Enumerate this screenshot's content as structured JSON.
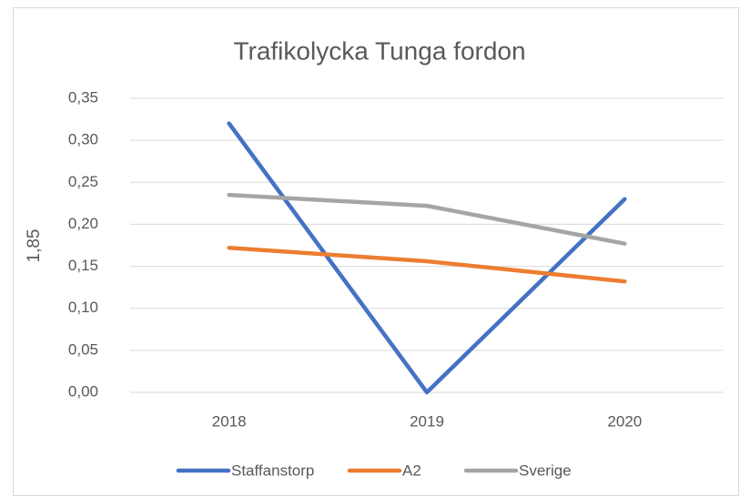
{
  "chart_data": {
    "type": "line",
    "title": "Trafikolycka Tunga fordon",
    "y_label": "1,85",
    "categories": [
      "2018",
      "2019",
      "2020"
    ],
    "series": [
      {
        "name": "Staffanstorp",
        "color": "#4472c4",
        "values": [
          0.32,
          0,
          0.23
        ]
      },
      {
        "name": "A2",
        "color": "#ed7d31",
        "values": [
          0.172,
          0.156,
          0.132
        ]
      },
      {
        "name": "Sverige",
        "color": "#a5a5a5",
        "values": [
          0.235,
          0.222,
          0.177
        ]
      }
    ],
    "ylim": [
      0,
      0.35
    ],
    "yticks": [
      {
        "value": 0,
        "label": "0,00"
      },
      {
        "value": 0.05,
        "label": "0,05"
      },
      {
        "value": 0.1,
        "label": "0,10"
      },
      {
        "value": 0.15,
        "label": "0,15"
      },
      {
        "value": 0.2,
        "label": "0,20"
      },
      {
        "value": 0.25,
        "label": "0,25"
      },
      {
        "value": 0.3,
        "label": "0,30"
      },
      {
        "value": 0.35,
        "label": "0,35"
      }
    ],
    "grid": true,
    "legend": "bottom"
  }
}
